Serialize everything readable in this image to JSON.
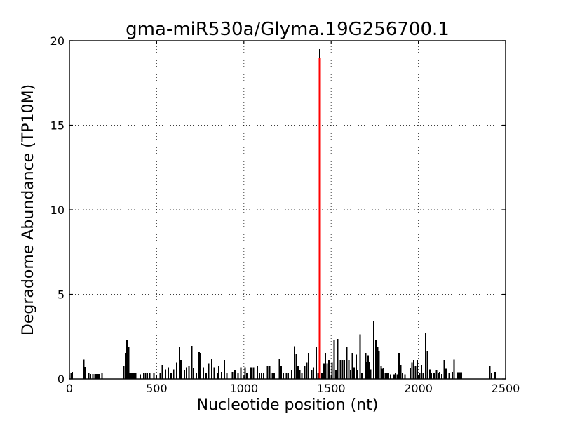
{
  "figure": {
    "background": "#ffffff",
    "frame_color": "#000000"
  },
  "chart_data": {
    "type": "bar",
    "title": "gma-miR530a/Glyma.19G256700.1",
    "xlabel": "Nucleotide position (nt)",
    "ylabel": "Degradome Abundance (TP10M)",
    "xlim": [
      0,
      2500
    ],
    "ylim": [
      0,
      20
    ],
    "xticks": [
      0,
      500,
      1000,
      1500,
      2000,
      2500
    ],
    "yticks": [
      0,
      5,
      10,
      15,
      20
    ],
    "grid": {
      "visible": true,
      "style": "dotted",
      "color": "#000000"
    },
    "bar_color": "#000000",
    "target_site": {
      "x": 1434,
      "value": 19.0,
      "color": "#ff0000",
      "adjacent_peak_value": 19.5,
      "adjacent_peak_color": "#000000"
    },
    "bars": [
      [
        10,
        0.35
      ],
      [
        17,
        0.42
      ],
      [
        82,
        1.15
      ],
      [
        88,
        0.7
      ],
      [
        111,
        0.35
      ],
      [
        121,
        0.3
      ],
      [
        135,
        0.3
      ],
      [
        146,
        0.3
      ],
      [
        154,
        0.3
      ],
      [
        162,
        0.3
      ],
      [
        170,
        0.3
      ],
      [
        186,
        0.35
      ],
      [
        312,
        0.76
      ],
      [
        322,
        1.53
      ],
      [
        330,
        2.29
      ],
      [
        339,
        1.88
      ],
      [
        347,
        0.35
      ],
      [
        355,
        0.35
      ],
      [
        362,
        0.35
      ],
      [
        370,
        0.35
      ],
      [
        379,
        0.35
      ],
      [
        406,
        0.28
      ],
      [
        426,
        0.35
      ],
      [
        436,
        0.35
      ],
      [
        446,
        0.35
      ],
      [
        460,
        0.35
      ],
      [
        484,
        0.35
      ],
      [
        520,
        0.35
      ],
      [
        533,
        0.83
      ],
      [
        551,
        0.56
      ],
      [
        567,
        0.69
      ],
      [
        583,
        0.35
      ],
      [
        596,
        0.56
      ],
      [
        614,
        0.97
      ],
      [
        631,
        1.88
      ],
      [
        640,
        1.11
      ],
      [
        660,
        0.49
      ],
      [
        671,
        0.69
      ],
      [
        685,
        0.76
      ],
      [
        701,
        1.94
      ],
      [
        711,
        0.63
      ],
      [
        728,
        0.35
      ],
      [
        744,
        1.6
      ],
      [
        752,
        1.53
      ],
      [
        768,
        0.69
      ],
      [
        784,
        0.35
      ],
      [
        797,
        0.9
      ],
      [
        815,
        1.18
      ],
      [
        830,
        0.69
      ],
      [
        848,
        0.35
      ],
      [
        857,
        0.76
      ],
      [
        872,
        0.42
      ],
      [
        888,
        1.11
      ],
      [
        902,
        0.35
      ],
      [
        935,
        0.42
      ],
      [
        949,
        0.49
      ],
      [
        966,
        0.35
      ],
      [
        982,
        0.69
      ],
      [
        1006,
        0.69
      ],
      [
        1017,
        0.35
      ],
      [
        1042,
        0.69
      ],
      [
        1056,
        0.69
      ],
      [
        1078,
        0.76
      ],
      [
        1089,
        0.35
      ],
      [
        1102,
        0.35
      ],
      [
        1113,
        0.35
      ],
      [
        1136,
        0.76
      ],
      [
        1147,
        0.76
      ],
      [
        1163,
        0.35
      ],
      [
        1174,
        0.35
      ],
      [
        1203,
        1.18
      ],
      [
        1214,
        0.76
      ],
      [
        1226,
        0.35
      ],
      [
        1243,
        0.35
      ],
      [
        1254,
        0.35
      ],
      [
        1274,
        0.49
      ],
      [
        1290,
        1.92
      ],
      [
        1301,
        1.46
      ],
      [
        1310,
        0.76
      ],
      [
        1321,
        0.49
      ],
      [
        1333,
        0.35
      ],
      [
        1348,
        0.76
      ],
      [
        1360,
        0.97
      ],
      [
        1371,
        1.53
      ],
      [
        1388,
        0.49
      ],
      [
        1398,
        0.69
      ],
      [
        1415,
        1.88
      ],
      [
        1424,
        0.35
      ],
      [
        1447,
        0.35
      ],
      [
        1458,
        0.9
      ],
      [
        1468,
        1.53
      ],
      [
        1478,
        0.9
      ],
      [
        1487,
        1.11
      ],
      [
        1505,
        0.97
      ],
      [
        1518,
        2.29
      ],
      [
        1527,
        0.49
      ],
      [
        1538,
        2.36
      ],
      [
        1554,
        1.11
      ],
      [
        1565,
        1.11
      ],
      [
        1575,
        1.11
      ],
      [
        1589,
        1.88
      ],
      [
        1602,
        1.11
      ],
      [
        1612,
        0.49
      ],
      [
        1621,
        1.53
      ],
      [
        1632,
        0.69
      ],
      [
        1643,
        1.43
      ],
      [
        1652,
        0.49
      ],
      [
        1665,
        2.64
      ],
      [
        1676,
        0.35
      ],
      [
        1699,
        1.53
      ],
      [
        1706,
        1.0
      ],
      [
        1713,
        1.39
      ],
      [
        1720,
        1.0
      ],
      [
        1726,
        0.56
      ],
      [
        1745,
        3.4
      ],
      [
        1757,
        2.3
      ],
      [
        1766,
        1.88
      ],
      [
        1775,
        1.67
      ],
      [
        1786,
        0.76
      ],
      [
        1795,
        0.6
      ],
      [
        1800,
        0.63
      ],
      [
        1810,
        0.35
      ],
      [
        1820,
        0.35
      ],
      [
        1829,
        0.35
      ],
      [
        1840,
        0.28
      ],
      [
        1860,
        0.28
      ],
      [
        1869,
        0.35
      ],
      [
        1880,
        0.28
      ],
      [
        1890,
        1.53
      ],
      [
        1900,
        0.83
      ],
      [
        1909,
        0.35
      ],
      [
        1923,
        0.28
      ],
      [
        1954,
        0.63
      ],
      [
        1963,
        0.97
      ],
      [
        1974,
        1.11
      ],
      [
        1984,
        0.76
      ],
      [
        1994,
        1.11
      ],
      [
        2007,
        0.35
      ],
      [
        2017,
        0.83
      ],
      [
        2027,
        0.35
      ],
      [
        2041,
        2.7
      ],
      [
        2051,
        1.67
      ],
      [
        2065,
        0.56
      ],
      [
        2074,
        0.35
      ],
      [
        2091,
        0.35
      ],
      [
        2105,
        0.49
      ],
      [
        2114,
        0.35
      ],
      [
        2123,
        0.42
      ],
      [
        2134,
        0.3
      ],
      [
        2148,
        1.11
      ],
      [
        2159,
        0.6
      ],
      [
        2177,
        0.35
      ],
      [
        2194,
        0.42
      ],
      [
        2205,
        1.15
      ],
      [
        2222,
        0.4
      ],
      [
        2230,
        0.4
      ],
      [
        2238,
        0.4
      ],
      [
        2246,
        0.4
      ],
      [
        2409,
        0.76
      ],
      [
        2420,
        0.35
      ],
      [
        2440,
        0.42
      ]
    ]
  }
}
